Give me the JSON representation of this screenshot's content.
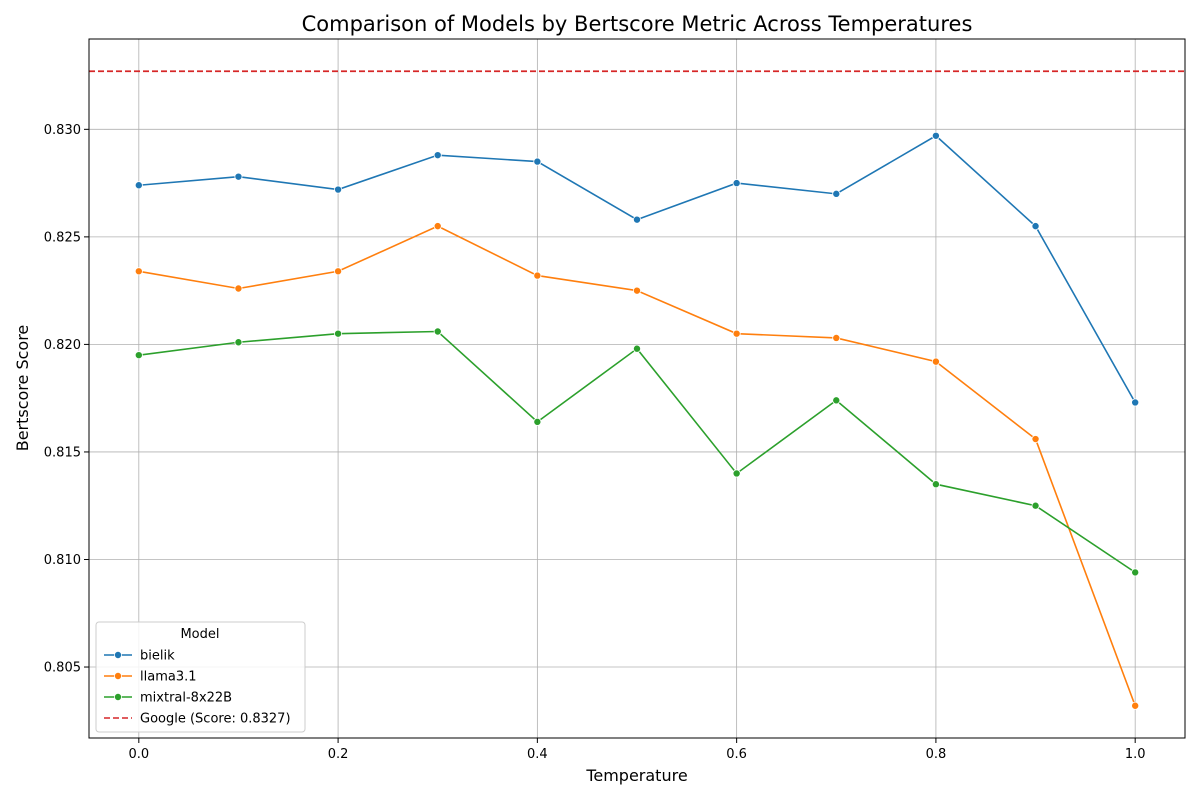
{
  "chart_data": {
    "type": "line",
    "title": "Comparison of Models by Bertscore Metric Across Temperatures",
    "xlabel": "Temperature",
    "ylabel": "Bertscore Score",
    "xlim": [
      -0.05,
      1.05
    ],
    "ylim": [
      0.8017,
      0.8342
    ],
    "x_ticks": [
      0.0,
      0.2,
      0.4,
      0.6,
      0.8,
      1.0
    ],
    "x_tick_labels": [
      "0.0",
      "0.2",
      "0.4",
      "0.6",
      "0.8",
      "1.0"
    ],
    "y_ticks": [
      0.805,
      0.81,
      0.815,
      0.82,
      0.825,
      0.83
    ],
    "y_tick_labels": [
      "0.805",
      "0.810",
      "0.815",
      "0.820",
      "0.825",
      "0.830"
    ],
    "grid": true,
    "x": [
      0.0,
      0.1,
      0.2,
      0.3,
      0.4,
      0.5,
      0.6,
      0.7,
      0.8,
      0.9,
      1.0
    ],
    "series": [
      {
        "name": "bielik",
        "color": "#1f77b4",
        "values": [
          0.8274,
          0.8278,
          0.8272,
          0.8288,
          0.8285,
          0.8258,
          0.8275,
          0.827,
          0.8297,
          0.8255,
          0.8173
        ]
      },
      {
        "name": "llama3.1",
        "color": "#ff7f0e",
        "values": [
          0.8234,
          0.8226,
          0.8234,
          0.8255,
          0.8232,
          0.8225,
          0.8205,
          0.8203,
          0.8192,
          0.8156,
          0.8032
        ]
      },
      {
        "name": "mixtral-8x22B",
        "color": "#2ca02c",
        "values": [
          0.8195,
          0.8201,
          0.8205,
          0.8206,
          0.8164,
          0.8198,
          0.814,
          0.8174,
          0.8135,
          0.8125,
          0.8094
        ]
      }
    ],
    "reference_line": {
      "name": "Google (Score: 0.8327)",
      "value": 0.8327,
      "color": "#d62728",
      "style": "dashed"
    },
    "legend": {
      "title": "Model",
      "placement": "lower-left"
    }
  }
}
